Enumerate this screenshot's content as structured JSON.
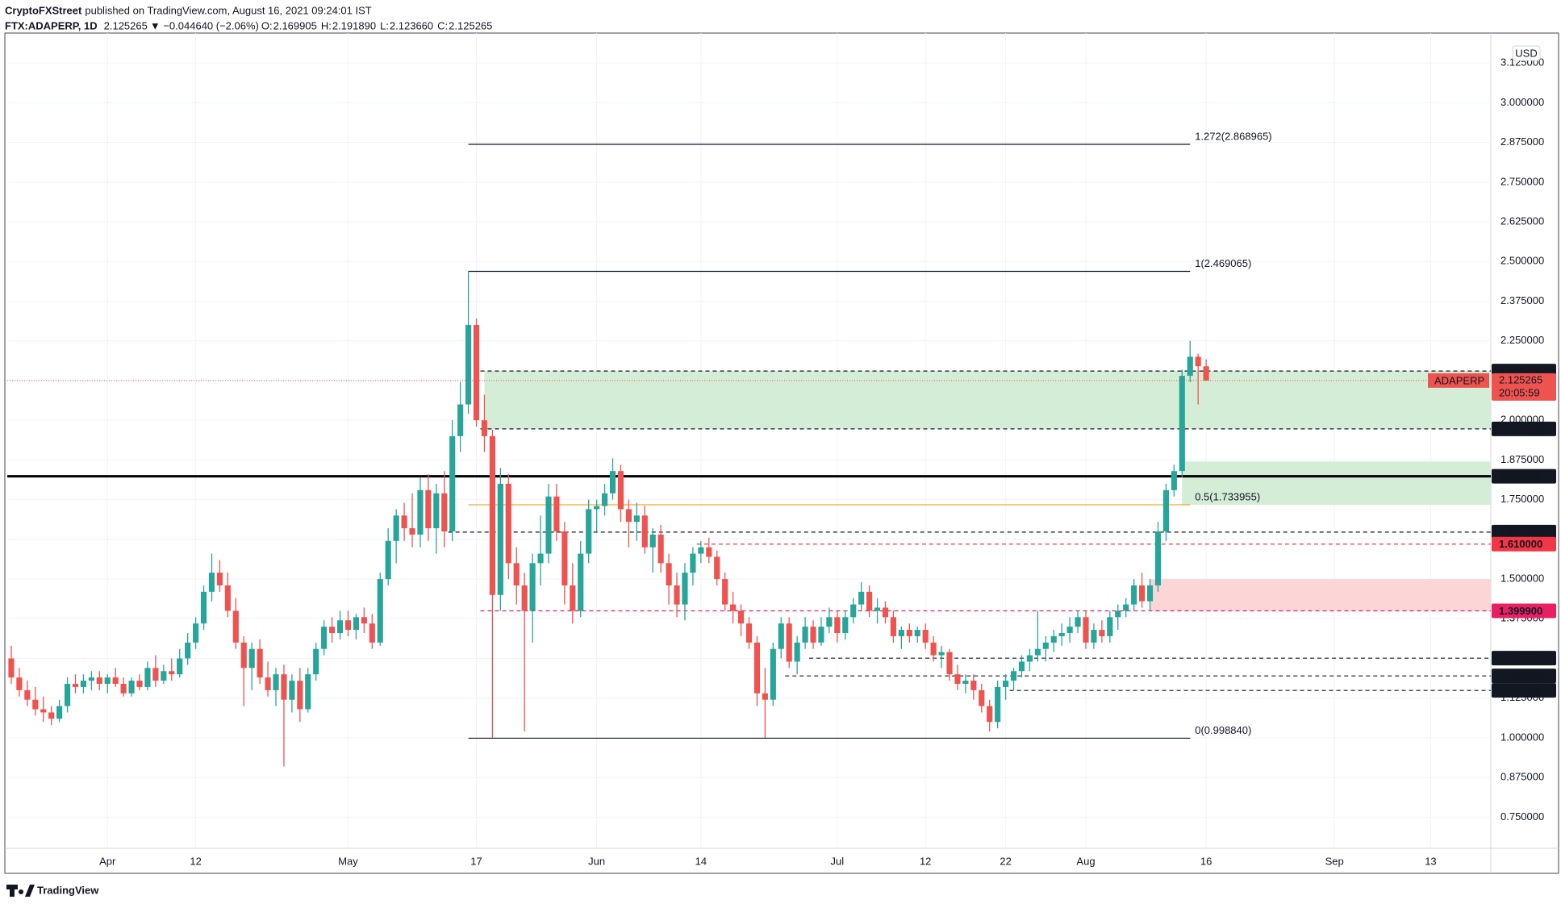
{
  "chart_data": {
    "type": "candlestick",
    "author": "CryptoFXStreet",
    "published": "published on TradingView.com, August 16, 2021 09:24:01 IST",
    "symbol": "FTX:ADAPERP, 1D",
    "legend_values": {
      "last": "2.125265",
      "change": "▼ −0.044640 (−2.06%)",
      "open": "2.169905",
      "high": "2.191890",
      "low": "2.123660",
      "close": "2.125265"
    },
    "ohlc_prefixes": [
      "O:",
      "H:",
      "L:",
      "C:"
    ],
    "currency": "USD",
    "price_label": "ADAPERP",
    "countdown": "20:05:59",
    "watermark": "TradingView",
    "up_color": "#26a69a",
    "down_color": "#ef5350",
    "grid": true,
    "categories": [
      null,
      null,
      null,
      null,
      null,
      null,
      null,
      null,
      null,
      null,
      null,
      null,
      "Apr",
      null,
      null,
      null,
      null,
      null,
      null,
      null,
      null,
      null,
      null,
      "12",
      null,
      null,
      null,
      null,
      null,
      null,
      null,
      null,
      null,
      null,
      null,
      null,
      null,
      null,
      null,
      null,
      null,
      null,
      "May",
      null,
      null,
      null,
      null,
      null,
      null,
      null,
      null,
      null,
      null,
      null,
      null,
      null,
      null,
      null,
      "17",
      null,
      null,
      null,
      null,
      null,
      null,
      null,
      null,
      null,
      null,
      null,
      null,
      null,
      null,
      "Jun",
      null,
      null,
      null,
      null,
      null,
      null,
      null,
      null,
      null,
      null,
      null,
      null,
      "14",
      null,
      null,
      null,
      null,
      null,
      null,
      null,
      null,
      null,
      null,
      null,
      null,
      null,
      null,
      null,
      null,
      "Jul",
      null,
      null,
      null,
      null,
      null,
      null,
      null,
      null,
      null,
      null,
      "12",
      null,
      null,
      null,
      null,
      null,
      null,
      null,
      null,
      null,
      "22",
      null,
      null,
      null,
      null,
      null,
      null,
      null,
      null,
      null,
      "Aug",
      null,
      null,
      null,
      null,
      null,
      null,
      null,
      null,
      null,
      null,
      null,
      null,
      null,
      null,
      "16",
      null,
      null,
      null,
      null,
      null,
      null,
      null,
      null,
      null,
      null,
      null,
      null,
      null,
      null,
      null,
      "Sep",
      null,
      null,
      null,
      null,
      null,
      null,
      null,
      null,
      null,
      null,
      null,
      "13",
      null,
      null,
      null,
      null,
      null,
      null,
      null
    ],
    "ohlc": [
      [
        1.25,
        1.29,
        1.17,
        1.19
      ],
      [
        1.19,
        1.22,
        1.13,
        1.15
      ],
      [
        1.15,
        1.18,
        1.1,
        1.12
      ],
      [
        1.12,
        1.16,
        1.07,
        1.09
      ],
      [
        1.09,
        1.13,
        1.05,
        1.08
      ],
      [
        1.08,
        1.1,
        1.04,
        1.06
      ],
      [
        1.06,
        1.12,
        1.05,
        1.1
      ],
      [
        1.1,
        1.19,
        1.08,
        1.17
      ],
      [
        1.17,
        1.2,
        1.14,
        1.16
      ],
      [
        1.16,
        1.2,
        1.14,
        1.18
      ],
      [
        1.18,
        1.21,
        1.15,
        1.19
      ],
      [
        1.19,
        1.21,
        1.15,
        1.17
      ],
      [
        1.17,
        1.2,
        1.14,
        1.19
      ],
      [
        1.19,
        1.22,
        1.16,
        1.17
      ],
      [
        1.17,
        1.19,
        1.13,
        1.14
      ],
      [
        1.14,
        1.19,
        1.13,
        1.18
      ],
      [
        1.18,
        1.2,
        1.15,
        1.16
      ],
      [
        1.16,
        1.24,
        1.15,
        1.22
      ],
      [
        1.22,
        1.26,
        1.16,
        1.18
      ],
      [
        1.18,
        1.23,
        1.17,
        1.21
      ],
      [
        1.21,
        1.25,
        1.18,
        1.2
      ],
      [
        1.2,
        1.28,
        1.19,
        1.25
      ],
      [
        1.25,
        1.33,
        1.23,
        1.3
      ],
      [
        1.3,
        1.38,
        1.28,
        1.36
      ],
      [
        1.36,
        1.48,
        1.34,
        1.46
      ],
      [
        1.46,
        1.58,
        1.43,
        1.52
      ],
      [
        1.52,
        1.56,
        1.46,
        1.48
      ],
      [
        1.48,
        1.52,
        1.38,
        1.4
      ],
      [
        1.4,
        1.44,
        1.28,
        1.3
      ],
      [
        1.3,
        1.32,
        1.1,
        1.22
      ],
      [
        1.22,
        1.3,
        1.15,
        1.28
      ],
      [
        1.28,
        1.31,
        1.17,
        1.19
      ],
      [
        1.19,
        1.24,
        1.13,
        1.15
      ],
      [
        1.15,
        1.22,
        1.1,
        1.2
      ],
      [
        1.2,
        1.23,
        0.91,
        1.12
      ],
      [
        1.12,
        1.2,
        1.08,
        1.18
      ],
      [
        1.18,
        1.22,
        1.05,
        1.09
      ],
      [
        1.09,
        1.22,
        1.08,
        1.2
      ],
      [
        1.2,
        1.3,
        1.18,
        1.28
      ],
      [
        1.28,
        1.37,
        1.26,
        1.35
      ],
      [
        1.35,
        1.38,
        1.3,
        1.33
      ],
      [
        1.33,
        1.4,
        1.31,
        1.37
      ],
      [
        1.37,
        1.4,
        1.32,
        1.34
      ],
      [
        1.34,
        1.39,
        1.31,
        1.38
      ],
      [
        1.38,
        1.41,
        1.33,
        1.36
      ],
      [
        1.36,
        1.39,
        1.28,
        1.3
      ],
      [
        1.3,
        1.52,
        1.29,
        1.5
      ],
      [
        1.5,
        1.66,
        1.48,
        1.62
      ],
      [
        1.62,
        1.72,
        1.55,
        1.7
      ],
      [
        1.7,
        1.74,
        1.62,
        1.66
      ],
      [
        1.66,
        1.77,
        1.6,
        1.64
      ],
      [
        1.64,
        1.82,
        1.6,
        1.78
      ],
      [
        1.78,
        1.83,
        1.62,
        1.66
      ],
      [
        1.66,
        1.8,
        1.58,
        1.77
      ],
      [
        1.77,
        1.84,
        1.6,
        1.65
      ],
      [
        1.65,
        2,
        1.62,
        1.95
      ],
      [
        1.95,
        2.12,
        1.9,
        2.05
      ],
      [
        2.05,
        2.47,
        2.02,
        2.3
      ],
      [
        2.3,
        2.32,
        1.98,
        2
      ],
      [
        2,
        2.08,
        1.9,
        1.95
      ],
      [
        1.95,
        1.97,
        1,
        1.45
      ],
      [
        1.45,
        1.85,
        1.4,
        1.8
      ],
      [
        1.8,
        1.83,
        1.5,
        1.55
      ],
      [
        1.55,
        1.6,
        1.42,
        1.48
      ],
      [
        1.48,
        1.52,
        1.02,
        1.4
      ],
      [
        1.4,
        1.58,
        1.3,
        1.55
      ],
      [
        1.55,
        1.7,
        1.48,
        1.58
      ],
      [
        1.58,
        1.8,
        1.55,
        1.76
      ],
      [
        1.76,
        1.8,
        1.62,
        1.65
      ],
      [
        1.65,
        1.68,
        1.42,
        1.48
      ],
      [
        1.48,
        1.55,
        1.36,
        1.4
      ],
      [
        1.4,
        1.62,
        1.38,
        1.58
      ],
      [
        1.58,
        1.75,
        1.55,
        1.72
      ],
      [
        1.72,
        1.75,
        1.65,
        1.73
      ],
      [
        1.73,
        1.8,
        1.7,
        1.77
      ],
      [
        1.77,
        1.88,
        1.75,
        1.84
      ],
      [
        1.84,
        1.86,
        1.68,
        1.72
      ],
      [
        1.72,
        1.75,
        1.6,
        1.68
      ],
      [
        1.68,
        1.74,
        1.62,
        1.7
      ],
      [
        1.7,
        1.73,
        1.58,
        1.6
      ],
      [
        1.6,
        1.66,
        1.52,
        1.64
      ],
      [
        1.64,
        1.67,
        1.52,
        1.55
      ],
      [
        1.55,
        1.58,
        1.42,
        1.48
      ],
      [
        1.48,
        1.52,
        1.38,
        1.42
      ],
      [
        1.42,
        1.55,
        1.37,
        1.52
      ],
      [
        1.52,
        1.6,
        1.48,
        1.58
      ],
      [
        1.58,
        1.62,
        1.55,
        1.6
      ],
      [
        1.6,
        1.63,
        1.55,
        1.57
      ],
      [
        1.57,
        1.59,
        1.48,
        1.5
      ],
      [
        1.5,
        1.52,
        1.4,
        1.42
      ],
      [
        1.42,
        1.46,
        1.36,
        1.4
      ],
      [
        1.4,
        1.42,
        1.32,
        1.36
      ],
      [
        1.36,
        1.38,
        1.28,
        1.3
      ],
      [
        1.3,
        1.32,
        1.1,
        1.14
      ],
      [
        1.14,
        1.22,
        1,
        1.12
      ],
      [
        1.12,
        1.3,
        1.1,
        1.28
      ],
      [
        1.28,
        1.38,
        1.25,
        1.36
      ],
      [
        1.36,
        1.38,
        1.22,
        1.24
      ],
      [
        1.24,
        1.32,
        1.2,
        1.3
      ],
      [
        1.3,
        1.38,
        1.28,
        1.35
      ],
      [
        1.35,
        1.37,
        1.28,
        1.3
      ],
      [
        1.3,
        1.38,
        1.29,
        1.35
      ],
      [
        1.35,
        1.41,
        1.33,
        1.38
      ],
      [
        1.38,
        1.4,
        1.3,
        1.33
      ],
      [
        1.33,
        1.4,
        1.31,
        1.38
      ],
      [
        1.38,
        1.44,
        1.36,
        1.42
      ],
      [
        1.42,
        1.49,
        1.4,
        1.46
      ],
      [
        1.46,
        1.48,
        1.38,
        1.4
      ],
      [
        1.4,
        1.44,
        1.36,
        1.41
      ],
      [
        1.41,
        1.43,
        1.36,
        1.38
      ],
      [
        1.38,
        1.4,
        1.3,
        1.32
      ],
      [
        1.32,
        1.35,
        1.28,
        1.34
      ],
      [
        1.34,
        1.36,
        1.3,
        1.32
      ],
      [
        1.32,
        1.35,
        1.3,
        1.34
      ],
      [
        1.34,
        1.36,
        1.28,
        1.3
      ],
      [
        1.3,
        1.32,
        1.24,
        1.26
      ],
      [
        1.26,
        1.29,
        1.22,
        1.27
      ],
      [
        1.27,
        1.28,
        1.18,
        1.2
      ],
      [
        1.2,
        1.23,
        1.15,
        1.17
      ],
      [
        1.17,
        1.2,
        1.14,
        1.18
      ],
      [
        1.18,
        1.2,
        1.12,
        1.15
      ],
      [
        1.15,
        1.17,
        1.08,
        1.1
      ],
      [
        1.1,
        1.12,
        1.02,
        1.05
      ],
      [
        1.05,
        1.18,
        1.03,
        1.16
      ],
      [
        1.16,
        1.2,
        1.12,
        1.18
      ],
      [
        1.18,
        1.22,
        1.15,
        1.21
      ],
      [
        1.21,
        1.26,
        1.19,
        1.24
      ],
      [
        1.24,
        1.28,
        1.21,
        1.26
      ],
      [
        1.26,
        1.4,
        1.24,
        1.28
      ],
      [
        1.28,
        1.32,
        1.24,
        1.3
      ],
      [
        1.3,
        1.34,
        1.27,
        1.32
      ],
      [
        1.32,
        1.36,
        1.29,
        1.33
      ],
      [
        1.33,
        1.38,
        1.3,
        1.35
      ],
      [
        1.35,
        1.4,
        1.33,
        1.38
      ],
      [
        1.38,
        1.4,
        1.28,
        1.3
      ],
      [
        1.3,
        1.36,
        1.28,
        1.34
      ],
      [
        1.34,
        1.37,
        1.3,
        1.32
      ],
      [
        1.32,
        1.4,
        1.3,
        1.38
      ],
      [
        1.38,
        1.42,
        1.34,
        1.4
      ],
      [
        1.4,
        1.44,
        1.38,
        1.42
      ],
      [
        1.42,
        1.5,
        1.4,
        1.48
      ],
      [
        1.48,
        1.52,
        1.41,
        1.43
      ],
      [
        1.43,
        1.5,
        1.4,
        1.48
      ],
      [
        1.48,
        1.68,
        1.46,
        1.65
      ],
      [
        1.65,
        1.8,
        1.62,
        1.78
      ],
      [
        1.78,
        1.86,
        1.76,
        1.84
      ],
      [
        1.84,
        2.16,
        1.82,
        2.14
      ],
      [
        2.14,
        2.25,
        2.12,
        2.2
      ],
      [
        2.2,
        2.21,
        2.05,
        2.17
      ],
      [
        2.169905,
        2.19189,
        2.12366,
        2.125265
      ],
      null,
      null,
      null,
      null,
      null,
      null,
      null,
      null,
      null,
      null,
      null,
      null,
      null,
      null,
      null,
      null,
      null,
      null,
      null,
      null,
      null,
      null,
      null,
      null,
      null,
      null,
      null,
      null,
      null,
      null,
      null,
      null,
      null,
      null,
      null
    ],
    "ylim": [
      0.652,
      3.194
    ],
    "yticks": [
      {
        "value": 0.75,
        "label": "0.750000"
      },
      {
        "value": 0.875,
        "label": "0.875000"
      },
      {
        "value": 1,
        "label": "1.000000"
      },
      {
        "value": 1.125,
        "label": "1.125000"
      },
      {
        "value": 1.25,
        "label": "1.250000"
      },
      {
        "value": 1.375,
        "label": "1.375000"
      },
      {
        "value": 1.5,
        "label": "1.500000"
      },
      {
        "value": 1.625,
        "label": "1.625000"
      },
      {
        "value": 1.75,
        "label": "1.750000"
      },
      {
        "value": 1.875,
        "label": "1.875000"
      },
      {
        "value": 2,
        "label": "2.000000"
      },
      {
        "value": 2.125,
        "label": "2.125000"
      },
      {
        "value": 2.25,
        "label": "2.250000"
      },
      {
        "value": 2.375,
        "label": "2.375000"
      },
      {
        "value": 2.5,
        "label": "2.500000"
      },
      {
        "value": 2.625,
        "label": "2.625000"
      },
      {
        "value": 2.75,
        "label": "2.750000"
      },
      {
        "value": 2.875,
        "label": "2.875000"
      },
      {
        "value": 3,
        "label": "3.000000"
      },
      {
        "value": 3.125,
        "label": "3.125000"
      }
    ],
    "zones": [
      {
        "low": 1.9729,
        "high": 2.15503,
        "start": 59,
        "color": "#d4edd6"
      },
      {
        "low": 1.733955,
        "high": 1.87,
        "start": 146,
        "color": "#d4edd6"
      },
      {
        "low": 1.3999,
        "high": 1.5,
        "start": 142,
        "color": "#fcd5d7"
      }
    ],
    "levels": [
      {
        "value": 2.15503,
        "label": "2.155030",
        "start": 59,
        "style": "dashed",
        "color": "#131722"
      },
      {
        "value": 1.9729,
        "label": "1.972900",
        "start": 59,
        "style": "dashed",
        "color": "#131722"
      },
      {
        "value": 1.823495,
        "label": "1.823495",
        "start": 0,
        "style": "solid",
        "color": "#000000"
      },
      {
        "value": 1.647785,
        "label": "1.647785",
        "start": 55,
        "style": "dashed",
        "color": "#131722"
      },
      {
        "value": 1.61,
        "label": "1.610000",
        "start": 86,
        "style": "dashed",
        "color": "#f23645"
      },
      {
        "value": 1.3999,
        "label": "1.399900",
        "start": 59,
        "style": "dashed",
        "color": "#e91e63"
      },
      {
        "value": 1.250885,
        "label": "1.250885",
        "start": 100,
        "style": "dashed",
        "color": "#131722"
      },
      {
        "value": 1.195,
        "label": "1.195000",
        "start": 97,
        "style": "dashed",
        "color": "#131722"
      },
      {
        "value": 1.1493,
        "label": "1.149300",
        "start": 125,
        "style": "dashed",
        "color": "#131722"
      }
    ],
    "fib": [
      {
        "value": 2.868965,
        "label": "1.272(2.868965)",
        "start": 57,
        "end": 147,
        "color": "#131722"
      },
      {
        "value": 2.469065,
        "label": "1(2.469065)",
        "start": 57,
        "end": 147,
        "color": "#131722"
      },
      {
        "value": 1.733955,
        "label": "0.5(1.733955)",
        "start": 57,
        "end": 147,
        "color": "#f5a623"
      },
      {
        "value": 0.99884,
        "label": "0(0.998840)",
        "start": 57,
        "end": 147,
        "color": "#131722"
      }
    ]
  }
}
